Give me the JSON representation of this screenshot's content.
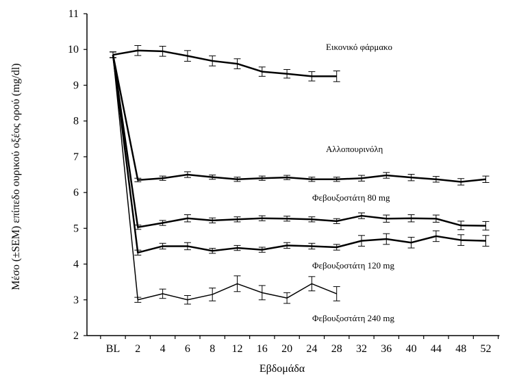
{
  "chart_data": {
    "type": "line",
    "xlabel": "Εβδομάδα",
    "ylabel": "Μέσο (±SEM) επίπεδο ουρικού οξέος ορού (mg/dl)",
    "ylim": [
      2,
      11
    ],
    "yticks": [
      2,
      3,
      4,
      5,
      6,
      7,
      8,
      9,
      10,
      11
    ],
    "categories": [
      "BL",
      "2",
      "4",
      "6",
      "8",
      "12",
      "16",
      "20",
      "24",
      "28",
      "32",
      "36",
      "40",
      "44",
      "48",
      "52"
    ],
    "grid": false,
    "series": [
      {
        "name": "Εικονικό φάρμακο",
        "stroke_width": 2.5,
        "values": [
          9.85,
          9.97,
          9.95,
          9.82,
          9.68,
          9.6,
          9.38,
          9.32,
          9.25,
          9.25,
          null,
          null,
          null,
          null,
          null,
          null
        ],
        "errors": [
          0.08,
          0.14,
          0.14,
          0.15,
          0.14,
          0.14,
          0.13,
          0.12,
          0.13,
          0.15,
          null,
          null,
          null,
          null,
          null,
          null
        ]
      },
      {
        "name": "Αλλοπουρινόλη",
        "stroke_width": 2.5,
        "values": [
          9.85,
          6.35,
          6.4,
          6.5,
          6.43,
          6.37,
          6.4,
          6.42,
          6.37,
          6.37,
          6.4,
          6.48,
          6.42,
          6.37,
          6.3,
          6.37
        ],
        "errors": [
          0.08,
          0.05,
          0.06,
          0.08,
          0.06,
          0.06,
          0.06,
          0.06,
          0.06,
          0.06,
          0.08,
          0.08,
          0.09,
          0.08,
          0.09,
          0.09
        ]
      },
      {
        "name": "Φεβουξοστάτη 80 mg",
        "stroke_width": 2.5,
        "values": [
          9.85,
          5.03,
          5.15,
          5.28,
          5.22,
          5.25,
          5.28,
          5.27,
          5.25,
          5.2,
          5.35,
          5.27,
          5.28,
          5.27,
          5.08,
          5.07
        ],
        "errors": [
          0.08,
          0.06,
          0.07,
          0.1,
          0.07,
          0.07,
          0.07,
          0.07,
          0.07,
          0.07,
          0.08,
          0.1,
          0.1,
          0.1,
          0.12,
          0.12
        ]
      },
      {
        "name": "Φεβουξοστάτη 120 mg",
        "stroke_width": 2.5,
        "values": [
          9.85,
          4.32,
          4.5,
          4.5,
          4.37,
          4.45,
          4.4,
          4.52,
          4.5,
          4.47,
          4.65,
          4.7,
          4.6,
          4.78,
          4.67,
          4.65
        ],
        "errors": [
          0.08,
          0.07,
          0.08,
          0.1,
          0.07,
          0.07,
          0.07,
          0.08,
          0.08,
          0.08,
          0.15,
          0.15,
          0.15,
          0.15,
          0.15,
          0.15
        ]
      },
      {
        "name": "Φεβουξοστάτη  240 mg",
        "stroke_width": 1.5,
        "values": [
          9.85,
          3.0,
          3.17,
          3.0,
          3.15,
          3.45,
          3.2,
          3.05,
          3.45,
          3.17,
          null,
          null,
          null,
          null,
          null,
          null
        ],
        "errors": [
          0.08,
          0.07,
          0.13,
          0.12,
          0.18,
          0.22,
          0.2,
          0.15,
          0.2,
          0.2,
          null,
          null,
          null,
          null,
          null,
          null
        ]
      }
    ]
  }
}
